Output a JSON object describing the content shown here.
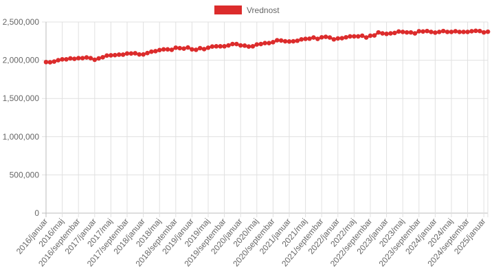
{
  "chart_data": {
    "type": "line",
    "title": "",
    "legend": {
      "label": "Vrednost",
      "position": "top",
      "color": "#dc2c2c"
    },
    "x_start": "2016/januar",
    "x_step": "1 month",
    "tick_labels": [
      "2016/januar",
      "2016/maj",
      "2016/septembar",
      "2017/januar",
      "2017/maj",
      "2017/septembar",
      "2018/januar",
      "2018/maj",
      "2018/septembar",
      "2019/januar",
      "2019/maj",
      "2019/septembar",
      "2020/januar",
      "2020/maj",
      "2020/septembar",
      "2021/januar",
      "2021/maj",
      "2021/septembar",
      "2022/januar",
      "2022/maj",
      "2022/septembar",
      "2023/januar",
      "2023/maj",
      "2023/septembar",
      "2024/januar",
      "2024/maj",
      "2024/septembar",
      "2025/januar"
    ],
    "tick_every": 4,
    "y_ticks": [
      "0",
      "500,000",
      "1,000,000",
      "1,500,000",
      "2,000,000",
      "2,500,000"
    ],
    "ylim": [
      0,
      2500000
    ],
    "grid": true,
    "values": [
      1976000,
      1973000,
      1982000,
      2000000,
      2012000,
      2012000,
      2024000,
      2018000,
      2027000,
      2027000,
      2036000,
      2027000,
      2006000,
      2024000,
      2039000,
      2061000,
      2064000,
      2067000,
      2073000,
      2073000,
      2088000,
      2088000,
      2091000,
      2076000,
      2076000,
      2094000,
      2112000,
      2118000,
      2133000,
      2142000,
      2142000,
      2136000,
      2164000,
      2158000,
      2152000,
      2167000,
      2142000,
      2136000,
      2158000,
      2145000,
      2164000,
      2179000,
      2182000,
      2182000,
      2182000,
      2194000,
      2212000,
      2212000,
      2194000,
      2191000,
      2179000,
      2182000,
      2206000,
      2212000,
      2224000,
      2224000,
      2236000,
      2261000,
      2258000,
      2248000,
      2245000,
      2248000,
      2255000,
      2273000,
      2279000,
      2282000,
      2297000,
      2279000,
      2300000,
      2306000,
      2297000,
      2273000,
      2285000,
      2288000,
      2300000,
      2312000,
      2312000,
      2312000,
      2321000,
      2297000,
      2321000,
      2324000,
      2364000,
      2351000,
      2345000,
      2351000,
      2357000,
      2376000,
      2370000,
      2364000,
      2364000,
      2351000,
      2379000,
      2376000,
      2382000,
      2370000,
      2361000,
      2370000,
      2382000,
      2370000,
      2370000,
      2379000,
      2370000,
      2370000,
      2370000,
      2379000,
      2385000,
      2382000,
      2364000,
      2373000
    ]
  }
}
